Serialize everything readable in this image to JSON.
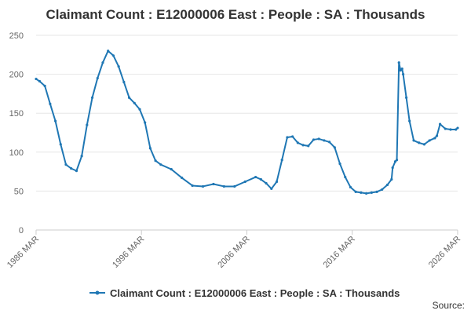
{
  "chart_data": {
    "type": "line",
    "title": "Claimant Count : E12000006 East : People : SA : Thousands",
    "xlabel": "",
    "ylabel": "",
    "x_ticks": [
      "1986 MAR",
      "1996 MAR",
      "2006 MAR",
      "2016 MAR",
      "2026 MAR"
    ],
    "y_ticks": [
      0,
      50,
      100,
      150,
      200,
      250
    ],
    "ylim": [
      0,
      250
    ],
    "xlim": [
      1986.17,
      2026.17
    ],
    "grid": "horizontal",
    "legend_position": "bottom",
    "series": [
      {
        "name": "Claimant Count : E12000006 East : People : SA : Thousands",
        "color": "#1f77b4",
        "x": [
          1986.17,
          1986.5,
          1987.0,
          1987.5,
          1988.0,
          1988.5,
          1989.0,
          1989.5,
          1990.0,
          1990.5,
          1991.0,
          1991.5,
          1992.0,
          1992.5,
          1993.0,
          1993.5,
          1994.0,
          1994.5,
          1995.0,
          1995.5,
          1996.0,
          1996.5,
          1997.0,
          1997.5,
          1998.0,
          1999.0,
          2000.0,
          2001.0,
          2002.0,
          2003.0,
          2004.0,
          2005.0,
          2006.0,
          2007.0,
          2007.5,
          2008.0,
          2008.5,
          2009.0,
          2009.5,
          2010.0,
          2010.5,
          2011.0,
          2011.5,
          2012.0,
          2012.5,
          2013.0,
          2013.5,
          2014.0,
          2014.5,
          2015.0,
          2015.5,
          2016.0,
          2016.5,
          2017.0,
          2017.5,
          2018.0,
          2018.5,
          2019.0,
          2019.5,
          2019.9,
          2020.0,
          2020.25,
          2020.4,
          2020.6,
          2020.75,
          2020.9,
          2021.0,
          2021.3,
          2021.6,
          2022.0,
          2022.5,
          2023.0,
          2023.5,
          2024.0,
          2024.2,
          2024.5,
          2025.0,
          2025.5,
          2026.0,
          2026.17
        ],
        "values": [
          194,
          191,
          185,
          162,
          140,
          110,
          84,
          79,
          76,
          95,
          135,
          170,
          195,
          215,
          230,
          224,
          210,
          190,
          170,
          163,
          155,
          138,
          105,
          89,
          84,
          78,
          67,
          57,
          56,
          59,
          56,
          56,
          62,
          68,
          65,
          60,
          53,
          62,
          90,
          119,
          120,
          112,
          109,
          108,
          116,
          117,
          115,
          113,
          106,
          85,
          68,
          55,
          49,
          48,
          47,
          48,
          49,
          52,
          58,
          65,
          80,
          88,
          90,
          215,
          205,
          207,
          200,
          170,
          140,
          115,
          112,
          110,
          115,
          118,
          121,
          136,
          130,
          129,
          129,
          131
        ]
      }
    ]
  },
  "legend": {
    "label": "Claimant Count : E12000006 East : People : SA : Thousands"
  },
  "footer": {
    "source": "Source:"
  }
}
